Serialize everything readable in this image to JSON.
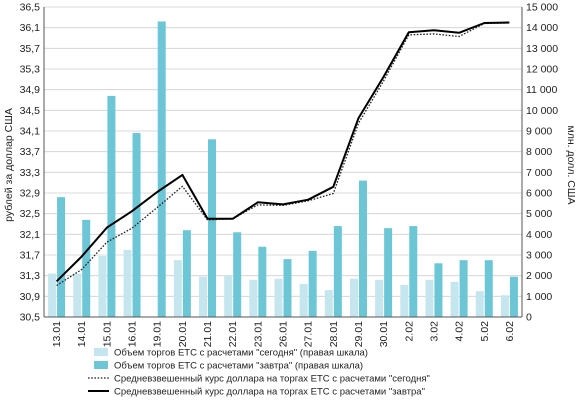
{
  "chart_data": {
    "type": "bar+line",
    "categories": [
      "13.01",
      "14.01",
      "15.01",
      "16.01",
      "19.01",
      "20.01",
      "21.01",
      "22.01",
      "23.01",
      "26.01",
      "27.01",
      "28.01",
      "29.01",
      "30.01",
      "2.02",
      "3.02",
      "4.02",
      "5.02",
      "6.02"
    ],
    "y_left": {
      "label": "рублей за доллар США",
      "range": [
        30.5,
        36.5
      ],
      "ticks": [
        "30,5",
        "30,9",
        "31,3",
        "31,7",
        "32,1",
        "32,5",
        "32,9",
        "33,3",
        "33,7",
        "34,1",
        "34,5",
        "34,9",
        "35,3",
        "35,7",
        "36,1",
        "36,5"
      ]
    },
    "y_right": {
      "label": "млн. долл. США",
      "range": [
        0,
        15000
      ],
      "ticks": [
        "0",
        "1 000",
        "2 000",
        "3 000",
        "4 000",
        "5 000",
        "6 000",
        "7 000",
        "8 000",
        "9 000",
        "10 000",
        "11 000",
        "12 000",
        "13 000",
        "14 000",
        "15 000"
      ]
    },
    "series": [
      {
        "name": "Объем торгов ЕТС с расчетами \"сегодня\" (правая шкала)",
        "kind": "bar",
        "axis": "right",
        "color": "#c5e6ee",
        "values": [
          2100,
          2100,
          2950,
          3250,
          0,
          2750,
          1950,
          2000,
          1800,
          1850,
          1600,
          1300,
          1850,
          1800,
          1550,
          1800,
          1700,
          1250,
          1050
        ]
      },
      {
        "name": "Объем торгов ЕТС с расчетами \"завтра\" (правая шкала)",
        "kind": "bar",
        "axis": "right",
        "color": "#6cc6d6",
        "values": [
          5800,
          4700,
          10700,
          8900,
          14300,
          4200,
          8600,
          4100,
          3400,
          2800,
          3200,
          4400,
          6600,
          4300,
          4400,
          2600,
          2750,
          2750,
          1950
        ]
      },
      {
        "name": "Средневзвешенный курс доллара на торгах ЕТС с расчетами \"сегодня\"",
        "kind": "line",
        "axis": "left",
        "style": "dotted",
        "color": "#222222",
        "values": [
          31.11,
          31.42,
          31.95,
          32.22,
          32.62,
          33.03,
          32.38,
          32.4,
          32.67,
          32.66,
          32.75,
          32.89,
          34.25,
          35.07,
          35.96,
          35.98,
          35.93,
          36.18,
          36.19
        ]
      },
      {
        "name": "Средневзвешенный курс доллара на торгах ЕТС с расчетами \"завтра\"",
        "kind": "line",
        "axis": "left",
        "style": "solid",
        "color": "#000000",
        "values": [
          31.19,
          31.67,
          32.23,
          32.55,
          32.92,
          33.25,
          32.4,
          32.4,
          32.72,
          32.68,
          32.77,
          33.02,
          34.35,
          35.15,
          36.01,
          36.05,
          36.0,
          36.19,
          36.2
        ]
      }
    ],
    "grid": "horizontal",
    "legend_position": "bottom"
  }
}
